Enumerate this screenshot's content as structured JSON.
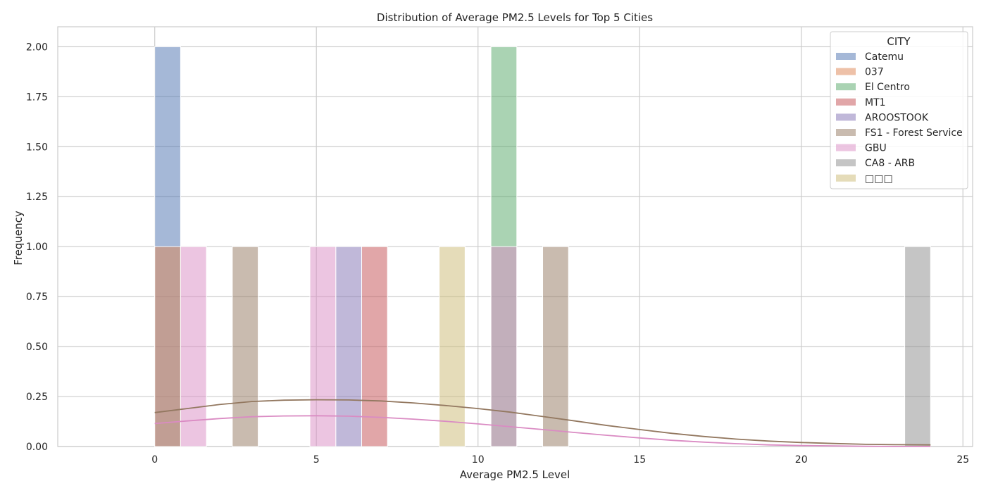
{
  "chart_data": {
    "type": "bar",
    "title": "Distribution of Average PM2.5 Levels for Top 5 Cities",
    "xlabel": "Average PM2.5 Level",
    "ylabel": "Frequency",
    "xlim": [
      -3,
      25.3
    ],
    "ylim": [
      0,
      2.1
    ],
    "xticks": [
      "0",
      "5",
      "10",
      "15",
      "20",
      "25"
    ],
    "yticks": [
      "0.00",
      "0.25",
      "0.50",
      "0.75",
      "1.00",
      "1.25",
      "1.50",
      "1.75",
      "2.00"
    ],
    "grid": true,
    "legend": {
      "title": "CITY",
      "placement": "top-right"
    },
    "series": [
      {
        "name": "Catemu",
        "color": "#4c72b0",
        "bars": [
          {
            "x0": 0.0,
            "x1": 0.8,
            "count": 2
          }
        ]
      },
      {
        "name": "037",
        "color": "#dd8452",
        "bars": [
          {
            "x0": 0.0,
            "x1": 0.8,
            "count": 1
          }
        ]
      },
      {
        "name": "El Centro",
        "color": "#55a868",
        "bars": [
          {
            "x0": 10.4,
            "x1": 11.2,
            "count": 2
          }
        ]
      },
      {
        "name": "MT1",
        "color": "#c44e52",
        "bars": [
          {
            "x0": 6.4,
            "x1": 7.2,
            "count": 1
          }
        ]
      },
      {
        "name": "AROOSTOOK",
        "color": "#8172b3",
        "bars": [
          {
            "x0": 5.6,
            "x1": 6.4,
            "count": 1
          }
        ]
      },
      {
        "name": "FS1 - Forest Service",
        "color": "#937860",
        "bars": [
          {
            "x0": 2.4,
            "x1": 3.2,
            "count": 1
          },
          {
            "x0": 12.0,
            "x1": 12.8,
            "count": 1
          }
        ]
      },
      {
        "name": "GBU",
        "color": "#da8bc3",
        "bars": [
          {
            "x0": 0.8,
            "x1": 1.6,
            "count": 1
          },
          {
            "x0": 4.8,
            "x1": 5.6,
            "count": 1
          },
          {
            "x0": 10.4,
            "x1": 11.2,
            "count": 1
          }
        ]
      },
      {
        "name": "CA8 - ARB",
        "color": "#8c8c8c",
        "bars": [
          {
            "x0": 23.2,
            "x1": 24.0,
            "count": 1
          }
        ]
      },
      {
        "name": "□□□",
        "color": "#ccb974",
        "bars": [
          {
            "x0": 8.8,
            "x1": 9.6,
            "count": 1
          }
        ]
      }
    ],
    "kde_lines": [
      {
        "name": "FS1 - Forest Service",
        "color": "#937860",
        "points": [
          [
            0,
            0.17
          ],
          [
            1,
            0.19
          ],
          [
            2,
            0.21
          ],
          [
            3,
            0.225
          ],
          [
            4,
            0.232
          ],
          [
            5,
            0.234
          ],
          [
            6,
            0.233
          ],
          [
            7,
            0.228
          ],
          [
            8,
            0.218
          ],
          [
            9,
            0.205
          ],
          [
            10,
            0.19
          ],
          [
            11,
            0.172
          ],
          [
            12,
            0.15
          ],
          [
            13,
            0.128
          ],
          [
            14,
            0.105
          ],
          [
            15,
            0.085
          ],
          [
            16,
            0.066
          ],
          [
            17,
            0.05
          ],
          [
            18,
            0.037
          ],
          [
            19,
            0.027
          ],
          [
            20,
            0.02
          ],
          [
            21,
            0.015
          ],
          [
            22,
            0.011
          ],
          [
            23,
            0.009
          ],
          [
            24,
            0.008
          ]
        ]
      },
      {
        "name": "GBU",
        "color": "#da8bc3",
        "points": [
          [
            0,
            0.115
          ],
          [
            1,
            0.128
          ],
          [
            2,
            0.14
          ],
          [
            3,
            0.149
          ],
          [
            4,
            0.153
          ],
          [
            5,
            0.154
          ],
          [
            6,
            0.152
          ],
          [
            7,
            0.146
          ],
          [
            8,
            0.137
          ],
          [
            9,
            0.126
          ],
          [
            10,
            0.113
          ],
          [
            11,
            0.099
          ],
          [
            12,
            0.085
          ],
          [
            13,
            0.07
          ],
          [
            14,
            0.056
          ],
          [
            15,
            0.043
          ],
          [
            16,
            0.031
          ],
          [
            17,
            0.022
          ],
          [
            18,
            0.014
          ],
          [
            19,
            0.008
          ],
          [
            20,
            0.005
          ],
          [
            21,
            0.003
          ],
          [
            22,
            0.001
          ],
          [
            23,
            0.0005
          ],
          [
            24,
            0.0002
          ]
        ]
      }
    ]
  }
}
